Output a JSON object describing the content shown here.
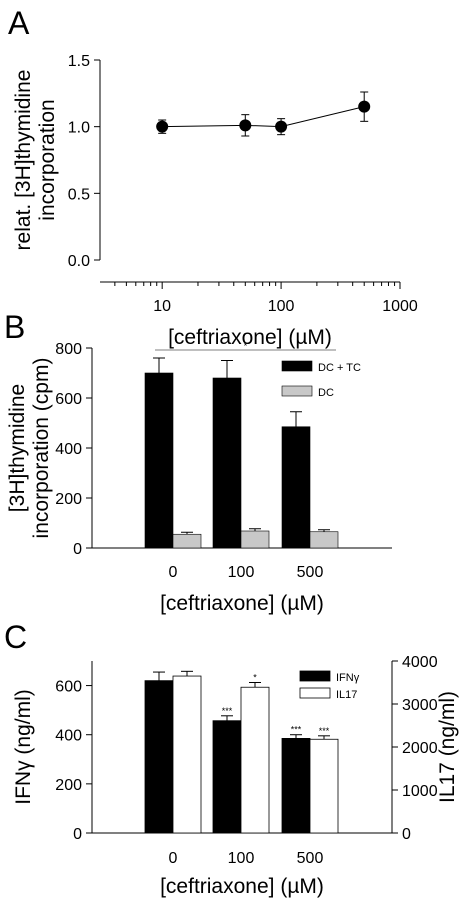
{
  "chart_data": [
    {
      "panel": "A",
      "type": "scatter",
      "xscale": "log",
      "xlim": [
        3,
        1000
      ],
      "xticks": [
        10,
        100,
        1000
      ],
      "x_tick_labels": [
        "10",
        "100",
        "1000"
      ],
      "ylim": [
        0,
        1.5
      ],
      "yticks": [
        0,
        0.5,
        1.0,
        1.5
      ],
      "y_tick_labels": [
        "0.0",
        "0.5",
        "1.0",
        "1.5"
      ],
      "xlabel": "[ceftriaxone] (µM)",
      "ylabel_lines": [
        "relat. [3H]thymidine",
        "incorporation"
      ],
      "x": [
        10,
        50,
        100,
        500
      ],
      "y": [
        1.0,
        1.01,
        1.0,
        1.15
      ],
      "err": [
        0.05,
        0.08,
        0.06,
        0.11
      ],
      "marker": "filled-circle",
      "connected": true
    },
    {
      "panel": "B",
      "type": "bar",
      "categories": [
        "0",
        "100",
        "500"
      ],
      "ylim": [
        0,
        800
      ],
      "yticks": [
        0,
        200,
        400,
        600,
        800
      ],
      "y_tick_labels": [
        "0",
        "200",
        "400",
        "600",
        "800"
      ],
      "xlabel": "[ceftriaxone] (µM)",
      "ylabel_lines": [
        "[3H]thymidine",
        "incorporation (cpm)"
      ],
      "series": [
        {
          "name": "DC + TC",
          "values": [
            700,
            680,
            485
          ],
          "err": [
            60,
            70,
            60
          ],
          "color": "#000000"
        },
        {
          "name": "DC",
          "values": [
            55,
            68,
            65
          ],
          "err": [
            8,
            9,
            8
          ],
          "color": "#c8c8c8"
        }
      ],
      "significance": [
        {
          "from": "0",
          "to": "500",
          "label": "*"
        }
      ],
      "legend": "top-right"
    },
    {
      "panel": "C",
      "type": "bar",
      "categories": [
        "0",
        "100",
        "500"
      ],
      "ylim": [
        0,
        700
      ],
      "yticks": [
        0,
        200,
        400,
        600
      ],
      "y_tick_labels": [
        "0",
        "200",
        "400",
        "600"
      ],
      "y2lim": [
        0,
        4000
      ],
      "y2ticks": [
        0,
        1000,
        2000,
        3000,
        4000
      ],
      "y2_tick_labels": [
        "0",
        "1000",
        "2000",
        "3000",
        "4000"
      ],
      "xlabel": "[ceftriaxone] (µM)",
      "ylabel": "IFNγ (ng/ml)",
      "y2label": "IL17 (ng/ml)",
      "series": [
        {
          "name": "IFNγ",
          "values": [
            620,
            457,
            385
          ],
          "err": [
            35,
            20,
            15
          ],
          "color": "#000000",
          "axis": "left",
          "sig": [
            "",
            "***",
            "***"
          ]
        },
        {
          "name": "IL17",
          "values": [
            3650,
            3390,
            2180
          ],
          "err": [
            110,
            110,
            80
          ],
          "color": "#ffffff",
          "axis": "right",
          "sig": [
            "",
            "*",
            "***"
          ]
        }
      ],
      "legend": "top-right"
    }
  ]
}
